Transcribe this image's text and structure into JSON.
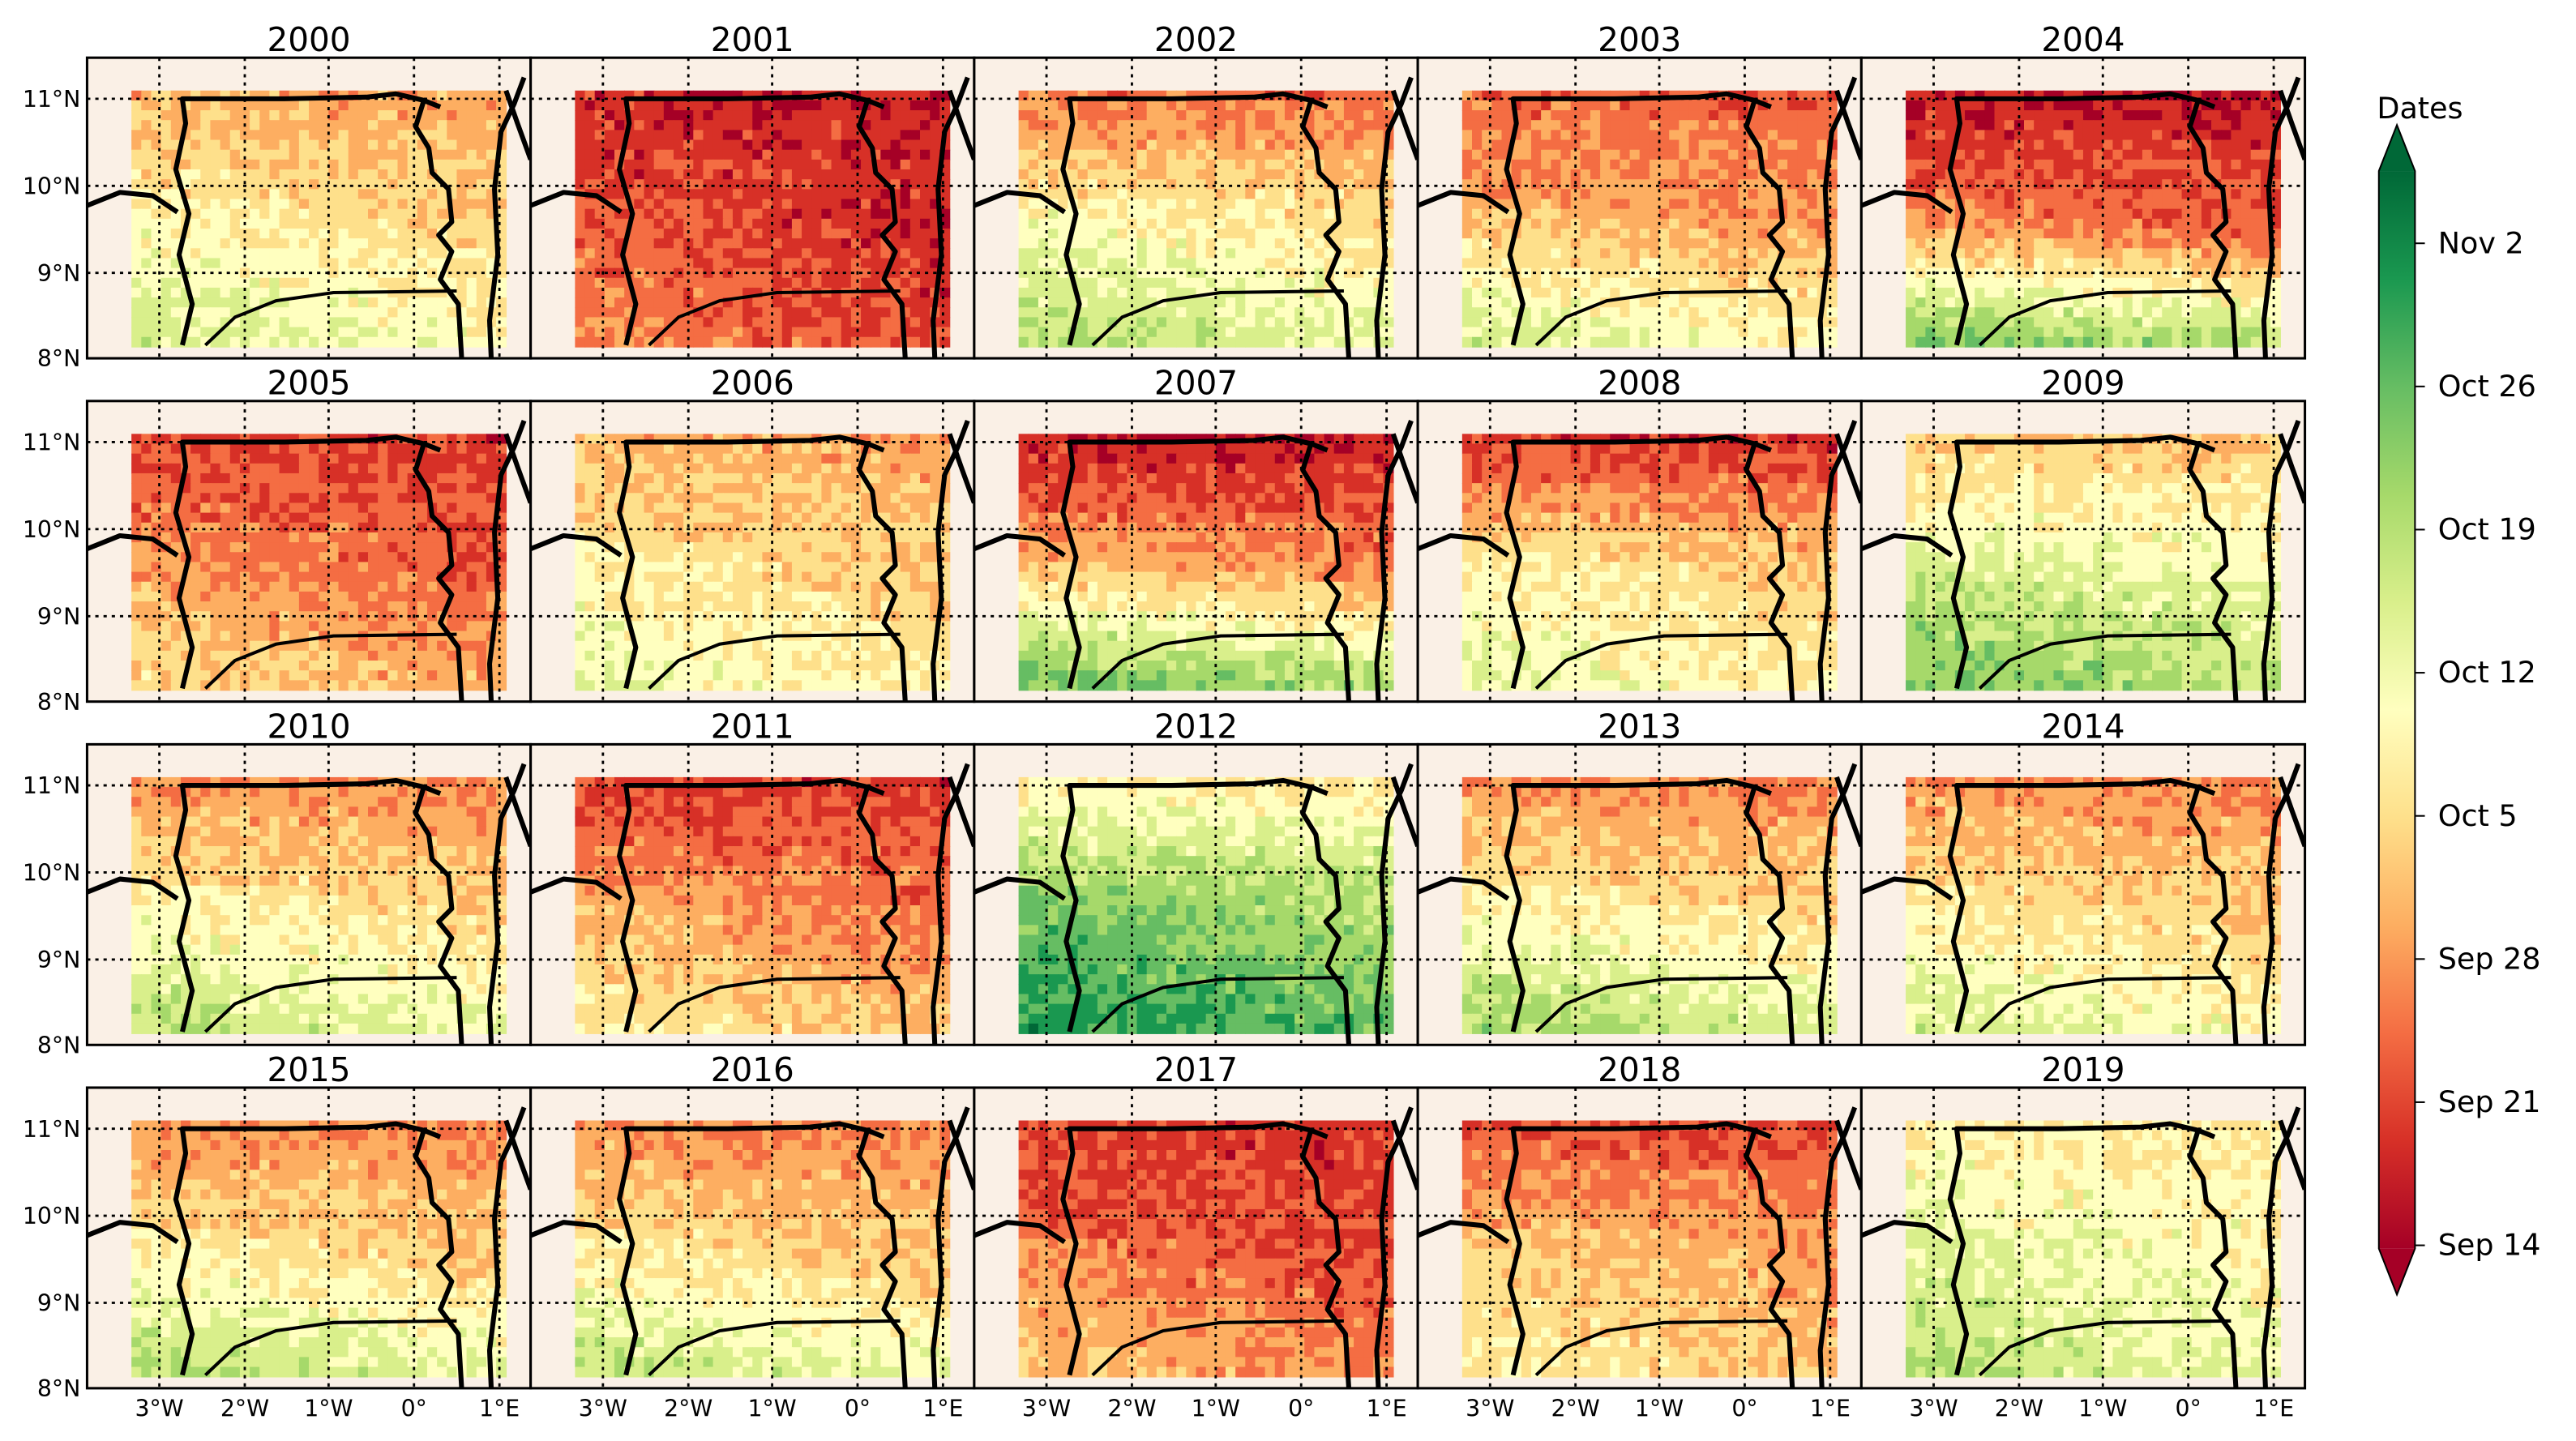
{
  "figure": {
    "years": [
      "2000",
      "2001",
      "2002",
      "2003",
      "2004",
      "2005",
      "2006",
      "2007",
      "2008",
      "2009",
      "2010",
      "2011",
      "2012",
      "2013",
      "2014",
      "2015",
      "2016",
      "2017",
      "2018",
      "2019"
    ],
    "lat_ticks": [
      "11°N",
      "10°N",
      "9°N",
      "8°N"
    ],
    "lon_ticks": [
      "3°W",
      "2°W",
      "1°W",
      "0°",
      "1°E"
    ],
    "colorbar": {
      "title": "Dates",
      "labels": [
        "Nov 2",
        "Oct 26",
        "Oct 19",
        "Oct 12",
        "Oct 5",
        "Sep 28",
        "Sep 21",
        "Sep 14"
      ],
      "extend": "both",
      "colormap": "RdYlGn",
      "colors": [
        "#a50026",
        "#d73027",
        "#f46d43",
        "#fdae61",
        "#fee08b",
        "#ffffbf",
        "#d9ef8b",
        "#a6d96a",
        "#66bd63",
        "#1a9850",
        "#006837"
      ]
    },
    "map_background_color": "#faf0e6"
  },
  "maps": [
    {
      "year": "2000",
      "pattern": "orange north, yellow center, light green south-west",
      "intensity": [
        0.3,
        0.42,
        0.55
      ]
    },
    {
      "year": "2001",
      "pattern": "red throughout",
      "intensity": [
        0.08,
        0.12,
        0.2
      ]
    },
    {
      "year": "2002",
      "pattern": "red north-west, yellow center, green south-west",
      "intensity": [
        0.2,
        0.45,
        0.62
      ]
    },
    {
      "year": "2003",
      "pattern": "red north, orange center, green south-west",
      "intensity": [
        0.18,
        0.3,
        0.55
      ]
    },
    {
      "year": "2004",
      "pattern": "dark red north, green south",
      "intensity": [
        0.05,
        0.2,
        0.72
      ]
    },
    {
      "year": "2005",
      "pattern": "red north, orange south",
      "intensity": [
        0.12,
        0.22,
        0.35
      ]
    },
    {
      "year": "2006",
      "pattern": "light orange throughout",
      "intensity": [
        0.3,
        0.4,
        0.5
      ]
    },
    {
      "year": "2007",
      "pattern": "dark red north, green south-west",
      "intensity": [
        0.05,
        0.28,
        0.75
      ]
    },
    {
      "year": "2008",
      "pattern": "red north, yellow center",
      "intensity": [
        0.1,
        0.4,
        0.5
      ]
    },
    {
      "year": "2009",
      "pattern": "yellow-green center, green south-west",
      "intensity": [
        0.35,
        0.55,
        0.72
      ]
    },
    {
      "year": "2010",
      "pattern": "orange north, yellow-green south",
      "intensity": [
        0.25,
        0.42,
        0.6
      ]
    },
    {
      "year": "2011",
      "pattern": "red north, orange center",
      "intensity": [
        0.12,
        0.26,
        0.4
      ]
    },
    {
      "year": "2012",
      "pattern": "yellow north, green center and south",
      "intensity": [
        0.45,
        0.72,
        0.85
      ]
    },
    {
      "year": "2013",
      "pattern": "orange north, yellow center, green south-west",
      "intensity": [
        0.25,
        0.42,
        0.65
      ]
    },
    {
      "year": "2014",
      "pattern": "orange north, yellow south",
      "intensity": [
        0.25,
        0.4,
        0.55
      ]
    },
    {
      "year": "2015",
      "pattern": "orange north, yellow center, green south",
      "intensity": [
        0.25,
        0.4,
        0.62
      ]
    },
    {
      "year": "2016",
      "pattern": "orange north, yellow center, green south-west",
      "intensity": [
        0.25,
        0.38,
        0.6
      ]
    },
    {
      "year": "2017",
      "pattern": "red throughout, orange south",
      "intensity": [
        0.1,
        0.18,
        0.3
      ]
    },
    {
      "year": "2018",
      "pattern": "red north, light orange south",
      "intensity": [
        0.15,
        0.32,
        0.4
      ]
    },
    {
      "year": "2019",
      "pattern": "pale yellow throughout, light green south",
      "intensity": [
        0.45,
        0.52,
        0.6
      ]
    }
  ]
}
